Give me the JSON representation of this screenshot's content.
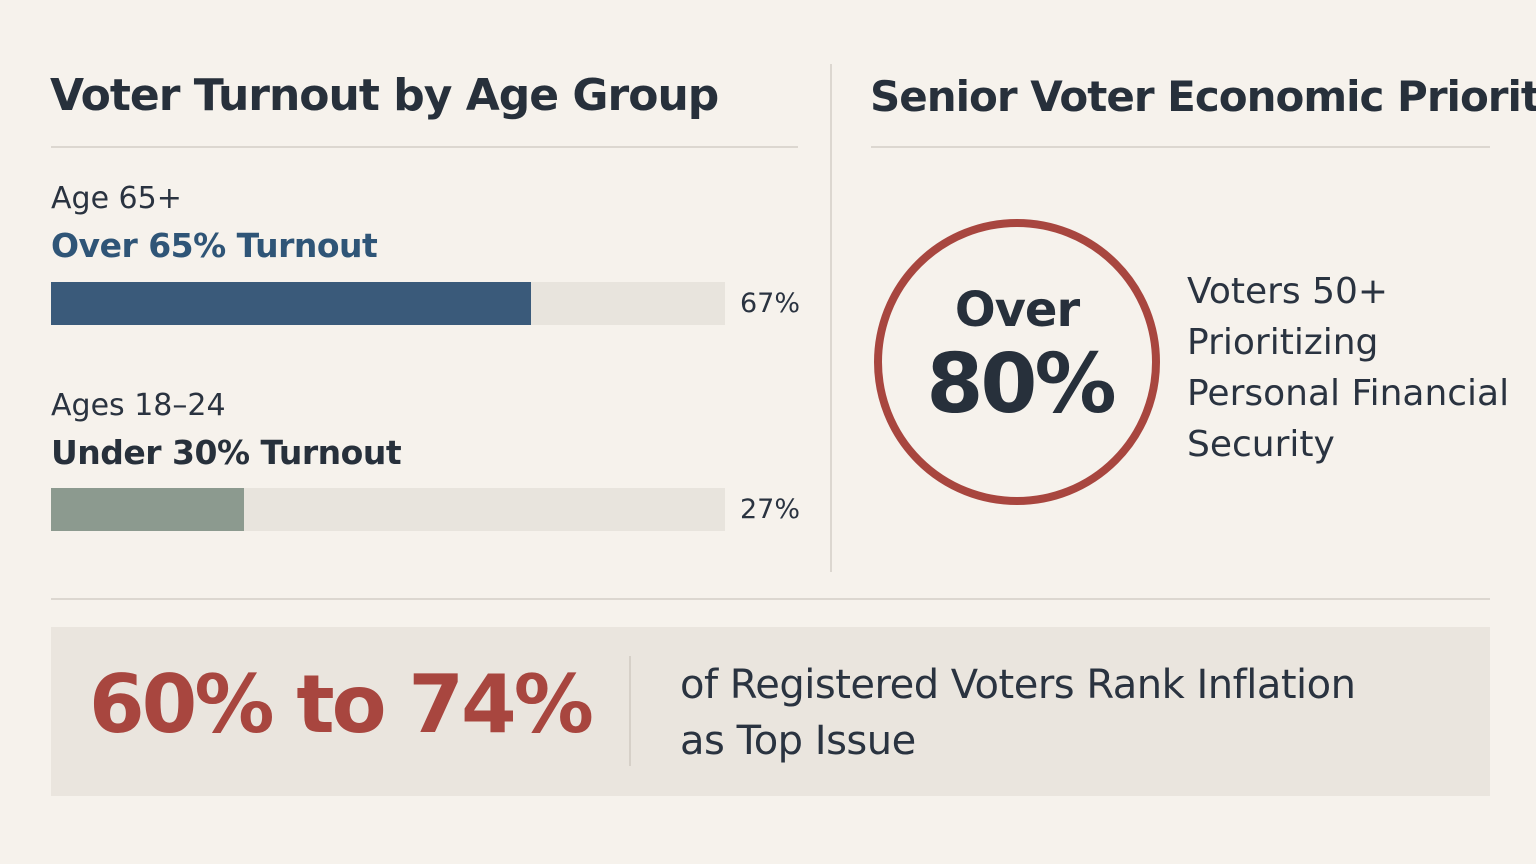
{
  "left_panel": {
    "title": "Voter Turnout by Age Group"
  },
  "right_panel": {
    "title": "Senior Voter Economic Priority",
    "ring": {
      "prefix": "Over",
      "value": "80%",
      "color": "#a8463f"
    },
    "description_lines": [
      "Voters 50+",
      "Prioritizing",
      "Personal Financial",
      "Security"
    ]
  },
  "bottom_panel": {
    "range": "60% to 74%",
    "range_color": "#a8463f",
    "description_lines": [
      "of Registered Voters Rank Inflation",
      "as Top Issue"
    ]
  },
  "chart_data": {
    "type": "bar",
    "orientation": "horizontal",
    "ylim": [
      0,
      100
    ],
    "bars": [
      {
        "group_label": "Age 65+",
        "headline": "Over 65% Turnout",
        "headline_color": "#2f5577",
        "value": 67,
        "value_label": "67%",
        "color": "#3a5a7a"
      },
      {
        "group_label": "Ages 18–24",
        "headline": "Under 30% Turnout",
        "headline_color": "#27303b",
        "value": 27,
        "value_label": "27%",
        "color": "#8c9a8f"
      }
    ],
    "track_color": "#e8e4dd"
  }
}
